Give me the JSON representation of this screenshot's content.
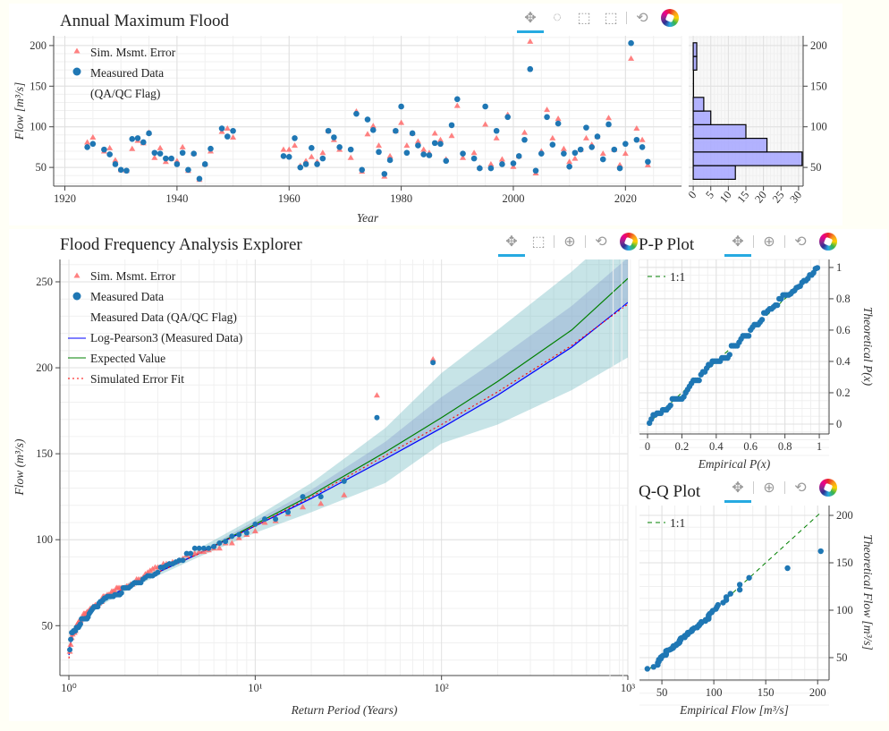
{
  "colors": {
    "measured": "#1f77b4",
    "sim": "#ff6b6b",
    "lp3": "#0000ff",
    "expected": "#008000",
    "simfit": "#ff0000",
    "band_outer": "#5fb3b9",
    "band_inner": "#8a9fd0",
    "hist_fill": "#aaaaff",
    "background": "#fffff6"
  },
  "toolbar_icons": {
    "pan": "pan-icon",
    "lasso": "lasso-select-icon",
    "box_zoom": "box-zoom-icon",
    "box_select": "box-select-icon",
    "wheel_zoom": "wheel-zoom-icon",
    "reset": "reset-icon",
    "logo": "bokeh-logo"
  },
  "chart_data": [
    {
      "id": "annual",
      "type": "scatter",
      "title": "Annual Maximum Flood",
      "xlabel": "Year",
      "ylabel": "Flow [m³/s]",
      "xlim": [
        1918,
        2030
      ],
      "ylim": [
        27,
        212
      ],
      "xticks": [
        1920,
        1940,
        1960,
        1980,
        2000,
        2020
      ],
      "yticks": [
        50,
        100,
        150,
        200
      ],
      "grid": true,
      "legend": {
        "placement": "top-left",
        "items": [
          "Sim. Msmt. Error",
          "Measured Data",
          "(QA/QC Flag)"
        ]
      },
      "years": [
        1924,
        1925,
        1927,
        1928,
        1929,
        1930,
        1931,
        1932,
        1933,
        1934,
        1935,
        1936,
        1937,
        1938,
        1939,
        1940,
        1941,
        1942,
        1943,
        1944,
        1945,
        1946,
        1948,
        1949,
        1950,
        1959,
        1960,
        1961,
        1962,
        1963,
        1964,
        1965,
        1966,
        1967,
        1968,
        1969,
        1971,
        1972,
        1973,
        1974,
        1975,
        1976,
        1977,
        1978,
        1979,
        1980,
        1981,
        1982,
        1983,
        1984,
        1985,
        1986,
        1987,
        1988,
        1989,
        1990,
        1991,
        1993,
        1994,
        1995,
        1996,
        1997,
        1998,
        1999,
        2000,
        2001,
        2002,
        2003,
        2004,
        2005,
        2006,
        2007,
        2008,
        2009,
        2010,
        2011,
        2012,
        2013,
        2014,
        2015,
        2016,
        2017,
        2018,
        2019,
        2020,
        2021,
        2022,
        2023,
        2024
      ],
      "measured": [
        75,
        79,
        72,
        66,
        54,
        47,
        46,
        85,
        86,
        81,
        92,
        68,
        67,
        61,
        61,
        54,
        68,
        47,
        67,
        36,
        54,
        73,
        98,
        88,
        95,
        64,
        63,
        86,
        50,
        54,
        74,
        54,
        61,
        95,
        87,
        75,
        72,
        116,
        47,
        109,
        96,
        69,
        42,
        59,
        95,
        125,
        68,
        92,
        77,
        66,
        65,
        80,
        79,
        58,
        102,
        134,
        67,
        61,
        49,
        125,
        49,
        95,
        54,
        112,
        55,
        64,
        84,
        171,
        46,
        67,
        112,
        78,
        104,
        67,
        51,
        68,
        72,
        99,
        75,
        88,
        60,
        103,
        72,
        49,
        79,
        203,
        84,
        75,
        57
      ],
      "simulated": [
        81,
        87,
        70,
        74,
        59,
        47,
        46,
        73,
        83,
        80,
        93,
        62,
        74,
        57,
        61,
        58,
        75,
        46,
        67,
        35,
        54,
        70,
        94,
        98,
        87,
        72,
        72,
        77,
        52,
        58,
        63,
        57,
        68,
        95,
        84,
        72,
        62,
        119,
        45,
        91,
        101,
        77,
        39,
        64,
        95,
        105,
        77,
        92,
        82,
        72,
        68,
        92,
        84,
        60,
        89,
        126,
        62,
        68,
        50,
        103,
        54,
        86,
        60,
        115,
        51,
        64,
        93,
        205,
        43,
        70,
        121,
        86,
        110,
        73,
        57,
        61,
        72,
        86,
        78,
        88,
        67,
        111,
        72,
        53,
        67,
        184,
        98,
        84,
        53
      ]
    },
    {
      "id": "histogram",
      "type": "bar",
      "orientation": "horizontal",
      "bin_edges": [
        35.4,
        52.2,
        69,
        85.8,
        102.6,
        119.4,
        136.2,
        153,
        169.8,
        186.6,
        203.4
      ],
      "counts": [
        12,
        31,
        21,
        15,
        5,
        3,
        0,
        0,
        1,
        1
      ],
      "xticks": [
        0,
        5,
        10,
        15,
        20,
        25,
        30
      ],
      "xlim": [
        -1.3,
        31.3
      ],
      "ylim": [
        27,
        212
      ],
      "yticks": [
        50,
        100,
        150,
        200
      ]
    },
    {
      "id": "ffa",
      "type": "line",
      "title": "Flood Frequency Analysis Explorer",
      "xlabel": "Return Period (Years)",
      "ylabel": "Flow (m³/s)",
      "xscale": "log",
      "xlim": [
        0.895,
        1000
      ],
      "ylim": [
        21,
        263
      ],
      "xticks": [
        {
          "v": 1,
          "label": "10⁰"
        },
        {
          "v": 10,
          "label": "10¹"
        },
        {
          "v": 100,
          "label": "10²"
        },
        {
          "v": 1000,
          "label": "10³"
        }
      ],
      "yticks": [
        50,
        100,
        150,
        200,
        250
      ],
      "grid": true,
      "legend": {
        "placement": "top-left",
        "items": [
          "Sim. Msmt. Error",
          "Measured Data",
          "Measured Data (QA/QC Flag)",
          "Log-Pearson3 (Measured Data)",
          "Expected Value",
          "Simulated Error Fit"
        ]
      },
      "T": [
        1.001,
        1.01,
        1.05,
        1.1,
        1.25,
        1.5,
        2,
        3,
        5,
        10,
        20,
        50,
        100,
        200,
        500,
        1000
      ],
      "lp3": [
        33,
        38,
        45,
        49,
        57,
        64,
        72,
        81,
        92,
        108,
        124,
        147,
        165,
        184,
        212,
        238
      ],
      "expected": [
        33,
        38,
        45,
        49,
        57,
        64,
        72,
        81,
        92,
        109,
        126,
        151,
        171,
        192,
        222,
        252
      ],
      "simulated_fit": [
        31,
        37,
        45,
        49,
        57,
        64,
        72,
        81,
        92,
        108,
        125,
        149,
        167,
        186,
        213,
        237
      ],
      "band_outer_lower": [
        31,
        36,
        43,
        47,
        55,
        62,
        70,
        79,
        90,
        104,
        116,
        133,
        156,
        167,
        187,
        206
      ],
      "band_outer_upper": [
        35,
        40,
        47,
        51,
        59,
        66,
        74,
        83,
        95,
        113,
        133,
        165,
        197,
        222,
        256,
        285
      ],
      "band_inner_upper": [
        34,
        39,
        46,
        50,
        58,
        65,
        73,
        82,
        93,
        111,
        129,
        157,
        183,
        205,
        236,
        264
      ]
    },
    {
      "id": "pp",
      "type": "scatter",
      "title": "P-P Plot",
      "xlabel": "Empirical P(x)",
      "ylabel": "Theoretical P(x)",
      "xlim": [
        -0.047,
        1.057
      ],
      "ylim": [
        -0.063,
        1.051
      ],
      "xticks": [
        {
          "v": 0,
          "label": "0"
        },
        {
          "v": 0.2,
          "label": "0.2"
        },
        {
          "v": 0.4,
          "label": "0.4"
        },
        {
          "v": 0.6,
          "label": "0.6"
        },
        {
          "v": 0.8,
          "label": "0.8"
        },
        {
          "v": 1,
          "label": "1"
        }
      ],
      "yticks": [
        {
          "v": 0,
          "label": "0"
        },
        {
          "v": 0.2,
          "label": "0.2"
        },
        {
          "v": 0.4,
          "label": "0.4"
        },
        {
          "v": 0.6,
          "label": "0.6"
        },
        {
          "v": 0.8,
          "label": "0.8"
        },
        {
          "v": 1,
          "label": "1"
        }
      ],
      "legend": {
        "placement": "top-left",
        "items": [
          "1:1"
        ]
      },
      "grid": true
    },
    {
      "id": "qq",
      "type": "scatter",
      "title": "Q-Q Plot",
      "xlabel": "Empirical Flow [m³/s]",
      "ylabel": "Theoretical Flow [m³/s]",
      "xlim": [
        28.4,
        211
      ],
      "ylim": [
        26.4,
        210.4
      ],
      "xticks": [
        {
          "v": 50,
          "label": "50"
        },
        {
          "v": 100,
          "label": "100"
        },
        {
          "v": 150,
          "label": "150"
        },
        {
          "v": 200,
          "label": "200"
        }
      ],
      "yticks": [
        {
          "v": 50,
          "label": "50"
        },
        {
          "v": 100,
          "label": "100"
        },
        {
          "v": 150,
          "label": "150"
        },
        {
          "v": 200,
          "label": "200"
        }
      ],
      "legend": {
        "placement": "top-left",
        "items": [
          "1:1"
        ]
      },
      "grid": true
    }
  ]
}
